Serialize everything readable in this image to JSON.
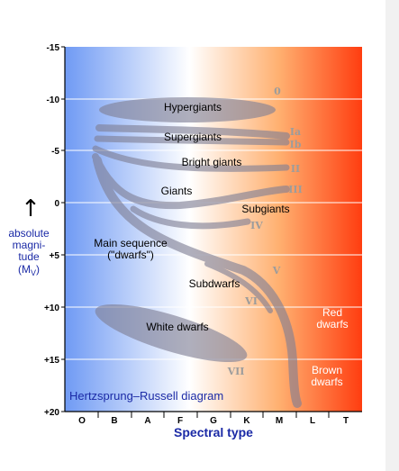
{
  "colors": {
    "hot": "#6f9af4",
    "mid": "#ffffff",
    "warm": "#ffb070",
    "cool": "#ff3d10",
    "title": "#1b2aa6",
    "band": "#7f7f95",
    "roman": "#9c9c9c"
  },
  "title": "Hertzsprung–Russell diagram",
  "x_axis": {
    "title": "Spectral type",
    "ticks": [
      "O",
      "B",
      "A",
      "F",
      "G",
      "K",
      "M",
      "L",
      "T"
    ]
  },
  "y_axis": {
    "label_lines": [
      "absolute",
      "magni-",
      "tude"
    ],
    "label_symbol": "(M",
    "label_sub": "V",
    "label_close": ")",
    "arrow": "↑",
    "ticks": [
      "-15",
      "-10",
      "-5",
      "0",
      "+5",
      "+10",
      "+15",
      "+20"
    ]
  },
  "regions": {
    "hypergiants": "Hypergiants",
    "supergiants": "Supergiants",
    "bright_giants": "Bright giants",
    "giants": "Giants",
    "subgiants": "Subgiants",
    "main_sequence_1": "Main sequence",
    "main_sequence_2": "(\"dwarfs\")",
    "subdwarfs": "Subdwarfs",
    "white_dwarfs": "White dwarfs",
    "red_dwarfs_1": "Red",
    "red_dwarfs_2": "dwarfs",
    "brown_dwarfs_1": "Brown",
    "brown_dwarfs_2": "dwarfs"
  },
  "luminosity_classes": {
    "c0": "0",
    "ia": "Ia",
    "ib": "Ib",
    "ii": "II",
    "iii": "III",
    "iv": "IV",
    "v": "V",
    "vi": "VI",
    "vii": "VII"
  }
}
